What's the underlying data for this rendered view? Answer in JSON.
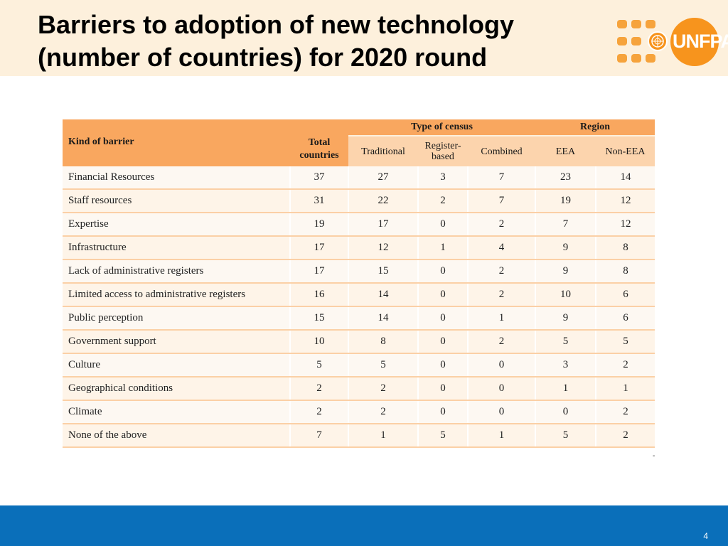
{
  "slide": {
    "title_line1": "Barriers to adoption of new technology",
    "title_line2": "(number of countries) for 2020 round",
    "logo_text": "UNFPA",
    "page_number": "4",
    "footnote_mark": "-"
  },
  "table": {
    "header": {
      "kind": "Kind of barrier",
      "total": "Total countries",
      "group_census": "Type of census",
      "group_region": "Region",
      "traditional": "Traditional",
      "register_based": "Register-based",
      "combined": "Combined",
      "eea": "EEA",
      "non_eea": "Non-EEA"
    },
    "rows": [
      [
        "Financial Resources",
        "37",
        "27",
        "3",
        "7",
        "23",
        "14"
      ],
      [
        "Staff resources",
        "31",
        "22",
        "2",
        "7",
        "19",
        "12"
      ],
      [
        "Expertise",
        "19",
        "17",
        "0",
        "2",
        "7",
        "12"
      ],
      [
        "Infrastructure",
        "17",
        "12",
        "1",
        "4",
        "9",
        "8"
      ],
      [
        "Lack of administrative registers",
        "17",
        "15",
        "0",
        "2",
        "9",
        "8"
      ],
      [
        "Limited access to administrative registers",
        "16",
        "14",
        "0",
        "2",
        "10",
        "6"
      ],
      [
        "Public perception",
        "15",
        "14",
        "0",
        "1",
        "9",
        "6"
      ],
      [
        "Government support",
        "10",
        "8",
        "0",
        "2",
        "5",
        "5"
      ],
      [
        "Culture",
        "5",
        "5",
        "0",
        "0",
        "3",
        "2"
      ],
      [
        "Geographical conditions",
        "2",
        "2",
        "0",
        "0",
        "1",
        "1"
      ],
      [
        "Climate",
        "2",
        "2",
        "0",
        "0",
        "0",
        "2"
      ],
      [
        "None of the above",
        "7",
        "1",
        "5",
        "1",
        "5",
        "2"
      ]
    ]
  },
  "colors": {
    "header_band": "#fdf0dc",
    "table_header": "#f9a75f",
    "footer_band": "#0a6fba",
    "logo_orange": "#f7941d"
  }
}
